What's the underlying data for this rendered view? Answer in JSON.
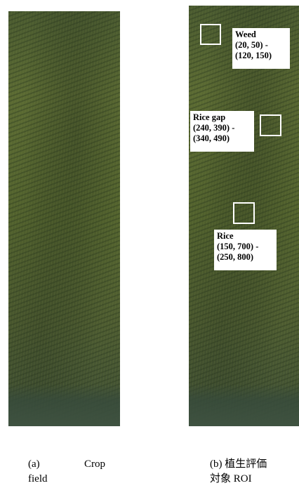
{
  "figure": {
    "panel_a": {
      "caption_tag": "(a)",
      "caption_word1": "Crop",
      "caption_word2": "field"
    },
    "panel_b": {
      "caption_line1": "(b) 植生評価",
      "caption_line2": "対象 ROI",
      "rois": [
        {
          "label_name": "Weed",
          "coords": "(20, 50) -\n(120, 150)"
        },
        {
          "label_name": "Rice gap",
          "coords": "(240, 390) -\n(340, 490)"
        },
        {
          "label_name": "Rice",
          "coords": "(150, 700) -\n(250, 800)"
        }
      ]
    }
  }
}
